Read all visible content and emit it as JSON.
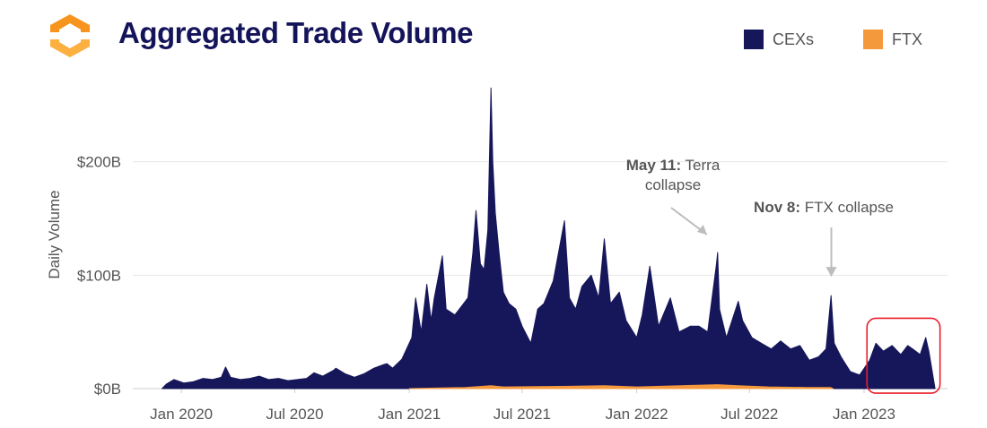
{
  "header": {
    "title": "Aggregated Trade Volume"
  },
  "legend": [
    {
      "label": "CEXs",
      "color": "#16165a"
    },
    {
      "label": "FTX",
      "color": "#f59a3c"
    }
  ],
  "colors": {
    "cex": "#16165a",
    "ftx": "#f59a3c",
    "highlight_box": "#e8202a",
    "annotation": "#555555",
    "logo_orange": "#f7941d",
    "logo_light": "#fbb040"
  },
  "icons": {
    "logo": "hexagon-logo-icon"
  },
  "annotations": [
    {
      "bold": "May 11:",
      "text": "Terra",
      "line2": "collapse",
      "date": "2022-05-11",
      "value": 120
    },
    {
      "bold": "Nov 8:",
      "text": "FTX collapse",
      "line2": "",
      "date": "2022-11-08",
      "value": 82
    }
  ],
  "chart_data": {
    "type": "area",
    "title": "Aggregated Trade Volume",
    "ylabel": "Daily Volume",
    "xlabel": "",
    "yunit": "USD billions",
    "ylim": [
      0,
      270
    ],
    "xlim": [
      "2019-10-15",
      "2023-05-15"
    ],
    "yticks": [
      {
        "value": 0,
        "label": "$0B"
      },
      {
        "value": 100,
        "label": "$100B"
      },
      {
        "value": 200,
        "label": "$200B"
      }
    ],
    "xticks": [
      {
        "date": "2020-01-01",
        "label": "Jan 2020"
      },
      {
        "date": "2020-07-01",
        "label": "Jul 2020"
      },
      {
        "date": "2021-01-01",
        "label": "Jan 2021"
      },
      {
        "date": "2021-07-01",
        "label": "Jul 2021"
      },
      {
        "date": "2022-01-01",
        "label": "Jan 2022"
      },
      {
        "date": "2022-07-01",
        "label": "Jul 2022"
      },
      {
        "date": "2023-01-01",
        "label": "Jan 2023"
      }
    ],
    "grid": "horizontal",
    "legend_position": "top-right",
    "highlight_range": [
      "2023-01-10",
      "2023-04-20"
    ],
    "series": [
      {
        "name": "CEXs",
        "points": [
          [
            "2019-12-01",
            0
          ],
          [
            "2019-12-08",
            4
          ],
          [
            "2019-12-20",
            8
          ],
          [
            "2020-01-05",
            5
          ],
          [
            "2020-01-20",
            6
          ],
          [
            "2020-02-05",
            9
          ],
          [
            "2020-02-20",
            8
          ],
          [
            "2020-03-05",
            10
          ],
          [
            "2020-03-12",
            19
          ],
          [
            "2020-03-20",
            10
          ],
          [
            "2020-04-05",
            8
          ],
          [
            "2020-04-20",
            9
          ],
          [
            "2020-05-05",
            11
          ],
          [
            "2020-05-20",
            8
          ],
          [
            "2020-06-05",
            9
          ],
          [
            "2020-06-20",
            7
          ],
          [
            "2020-07-05",
            8
          ],
          [
            "2020-07-20",
            9
          ],
          [
            "2020-08-01",
            14
          ],
          [
            "2020-08-15",
            11
          ],
          [
            "2020-09-01",
            16
          ],
          [
            "2020-09-05",
            18
          ],
          [
            "2020-09-20",
            13
          ],
          [
            "2020-10-05",
            10
          ],
          [
            "2020-10-20",
            13
          ],
          [
            "2020-11-05",
            18
          ],
          [
            "2020-11-20",
            21
          ],
          [
            "2020-11-26",
            22
          ],
          [
            "2020-12-05",
            18
          ],
          [
            "2020-12-20",
            26
          ],
          [
            "2021-01-05",
            45
          ],
          [
            "2021-01-11",
            80
          ],
          [
            "2021-01-20",
            50
          ],
          [
            "2021-01-29",
            92
          ],
          [
            "2021-02-05",
            60
          ],
          [
            "2021-02-10",
            80
          ],
          [
            "2021-02-23",
            117
          ],
          [
            "2021-03-01",
            70
          ],
          [
            "2021-03-15",
            65
          ],
          [
            "2021-03-25",
            72
          ],
          [
            "2021-04-05",
            80
          ],
          [
            "2021-04-13",
            120
          ],
          [
            "2021-04-18",
            157
          ],
          [
            "2021-04-25",
            110
          ],
          [
            "2021-05-01",
            105
          ],
          [
            "2021-05-07",
            140
          ],
          [
            "2021-05-12",
            265
          ],
          [
            "2021-05-15",
            200
          ],
          [
            "2021-05-19",
            155
          ],
          [
            "2021-05-25",
            120
          ],
          [
            "2021-06-01",
            85
          ],
          [
            "2021-06-10",
            75
          ],
          [
            "2021-06-21",
            70
          ],
          [
            "2021-07-01",
            55
          ],
          [
            "2021-07-15",
            40
          ],
          [
            "2021-07-26",
            70
          ],
          [
            "2021-08-05",
            75
          ],
          [
            "2021-08-20",
            95
          ],
          [
            "2021-09-07",
            148
          ],
          [
            "2021-09-15",
            80
          ],
          [
            "2021-09-25",
            70
          ],
          [
            "2021-10-05",
            90
          ],
          [
            "2021-10-20",
            100
          ],
          [
            "2021-11-01",
            80
          ],
          [
            "2021-11-10",
            132
          ],
          [
            "2021-11-20",
            75
          ],
          [
            "2021-12-04",
            85
          ],
          [
            "2021-12-15",
            60
          ],
          [
            "2022-01-01",
            45
          ],
          [
            "2022-01-10",
            65
          ],
          [
            "2022-01-22",
            108
          ],
          [
            "2022-02-05",
            55
          ],
          [
            "2022-02-24",
            80
          ],
          [
            "2022-03-10",
            50
          ],
          [
            "2022-03-28",
            55
          ],
          [
            "2022-04-11",
            55
          ],
          [
            "2022-04-25",
            50
          ],
          [
            "2022-05-09",
            110
          ],
          [
            "2022-05-11",
            120
          ],
          [
            "2022-05-14",
            70
          ],
          [
            "2022-05-25",
            45
          ],
          [
            "2022-06-13",
            77
          ],
          [
            "2022-06-20",
            60
          ],
          [
            "2022-07-05",
            45
          ],
          [
            "2022-07-20",
            40
          ],
          [
            "2022-08-05",
            35
          ],
          [
            "2022-08-20",
            42
          ],
          [
            "2022-09-05",
            35
          ],
          [
            "2022-09-20",
            38
          ],
          [
            "2022-10-05",
            25
          ],
          [
            "2022-10-20",
            28
          ],
          [
            "2022-11-01",
            35
          ],
          [
            "2022-11-09",
            82
          ],
          [
            "2022-11-14",
            40
          ],
          [
            "2022-11-25",
            28
          ],
          [
            "2022-12-10",
            15
          ],
          [
            "2022-12-25",
            12
          ],
          [
            "2023-01-10",
            25
          ],
          [
            "2023-01-20",
            40
          ],
          [
            "2023-02-01",
            33
          ],
          [
            "2023-02-15",
            38
          ],
          [
            "2023-03-01",
            30
          ],
          [
            "2023-03-12",
            38
          ],
          [
            "2023-03-20",
            35
          ],
          [
            "2023-04-01",
            30
          ],
          [
            "2023-04-10",
            45
          ],
          [
            "2023-04-15",
            33
          ],
          [
            "2023-04-25",
            0
          ]
        ]
      },
      {
        "name": "FTX",
        "points": [
          [
            "2021-01-01",
            0
          ],
          [
            "2021-04-01",
            1
          ],
          [
            "2021-05-12",
            2.5
          ],
          [
            "2021-06-01",
            1.5
          ],
          [
            "2021-09-01",
            2
          ],
          [
            "2021-11-10",
            2.5
          ],
          [
            "2022-01-01",
            1.5
          ],
          [
            "2022-05-11",
            3.5
          ],
          [
            "2022-06-13",
            2.5
          ],
          [
            "2022-08-01",
            1.5
          ],
          [
            "2022-10-01",
            1
          ],
          [
            "2022-11-08",
            1
          ],
          [
            "2022-11-12",
            0
          ]
        ]
      }
    ]
  }
}
